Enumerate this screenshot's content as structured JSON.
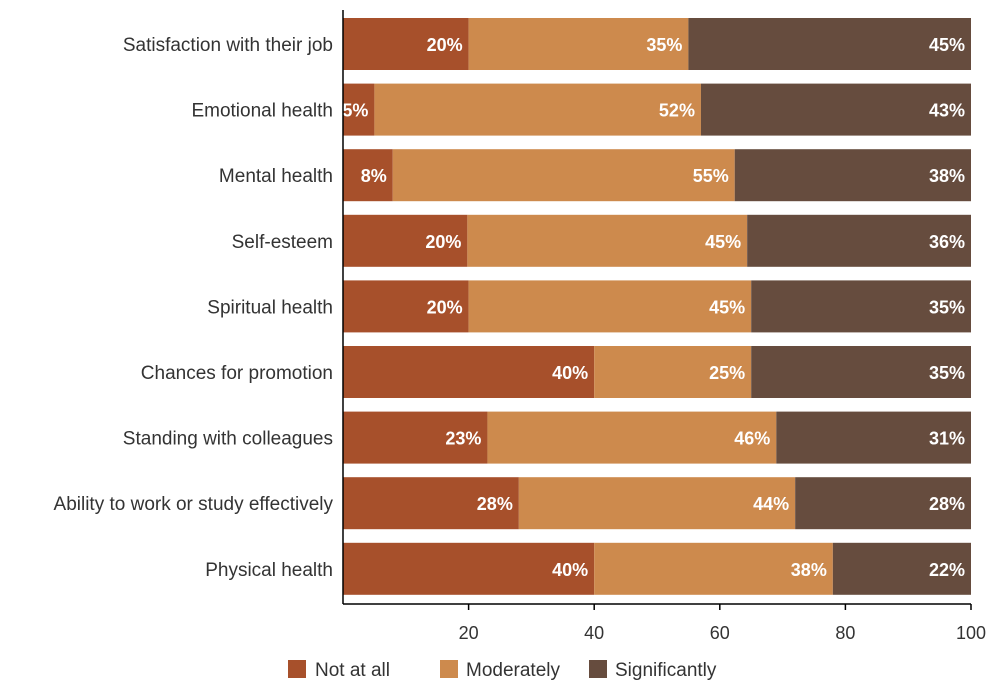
{
  "colors": {
    "not_at_all": "#a7502b",
    "moderately": "#cd8a4d",
    "significantly": "#664c3e",
    "axis": "#000000",
    "category_text": "#333333",
    "value_text": "#ffffff"
  },
  "chart_data": {
    "type": "bar",
    "orientation": "horizontal",
    "stacked": true,
    "categories": [
      "Satisfaction with their job",
      "Emotional health",
      "Mental health",
      "Self-esteem",
      "Spiritual health",
      "Chances for promotion",
      "Standing with colleagues",
      "Ability to work or study effectively",
      "Physical health"
    ],
    "series": [
      {
        "name": "Not at all",
        "color": "#a7502b",
        "values": [
          20,
          5,
          8,
          20,
          20,
          40,
          23,
          28,
          40
        ],
        "labels": [
          "20%",
          "5%",
          "8%",
          "20%",
          "20%",
          "40%",
          "23%",
          "28%",
          "40%"
        ]
      },
      {
        "name": "Moderately",
        "color": "#cd8a4d",
        "values": [
          35,
          52,
          55,
          45,
          45,
          25,
          46,
          44,
          38
        ],
        "labels": [
          "35%",
          "52%",
          "55%",
          "45%",
          "45%",
          "25%",
          "46%",
          "44%",
          "38%"
        ]
      },
      {
        "name": "Significantly",
        "color": "#664c3e",
        "values": [
          45,
          43,
          38,
          36,
          35,
          35,
          31,
          28,
          22
        ],
        "labels": [
          "45%",
          "43%",
          "38%",
          "36%",
          "35%",
          "35%",
          "31%",
          "28%",
          "22%"
        ]
      }
    ],
    "xlim": [
      0,
      100
    ],
    "xticks": [
      20,
      40,
      60,
      80,
      100
    ],
    "title": "",
    "xlabel": "",
    "ylabel": "",
    "grid": false,
    "legend_position": "bottom"
  }
}
